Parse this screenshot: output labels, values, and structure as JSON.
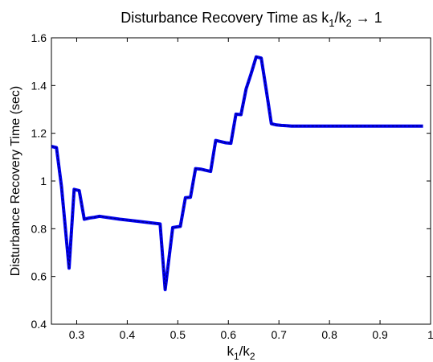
{
  "chart_data": {
    "type": "line",
    "title_main": "Disturbance Recovery Time as k",
    "title_sub1": "1",
    "title_mid": "/k",
    "title_sub2": "2",
    "title_end": " → 1",
    "xlabel_main": "k",
    "xlabel_sub1": "1",
    "xlabel_mid": "/k",
    "xlabel_sub2": "2",
    "ylabel": "Disturbance Recovery Time (sec)",
    "xlim": [
      0.25,
      1.0
    ],
    "ylim": [
      0.4,
      1.6
    ],
    "xticks": [
      0.3,
      0.4,
      0.5,
      0.6,
      0.7,
      0.8,
      0.9,
      1
    ],
    "xtick_labels": [
      "0.3",
      "0.4",
      "0.5",
      "0.6",
      "0.7",
      "0.8",
      "0.9",
      "1"
    ],
    "yticks": [
      0.4,
      0.6,
      0.8,
      1.0,
      1.2,
      1.4,
      1.6
    ],
    "ytick_labels": [
      "0.4",
      "0.6",
      "0.8",
      "1",
      "1.2",
      "1.4",
      "1.6"
    ],
    "grid": false,
    "series_color": "#0000ee",
    "series_dash_color": "#000000",
    "series": [
      {
        "x": [
          0.25,
          0.26,
          0.27,
          0.285,
          0.295,
          0.305,
          0.315,
          0.325,
          0.335,
          0.345,
          0.385,
          0.425,
          0.465,
          0.475,
          0.49,
          0.505,
          0.515,
          0.525,
          0.535,
          0.545,
          0.555,
          0.565,
          0.575,
          0.585,
          0.595,
          0.605,
          0.615,
          0.625,
          0.635,
          0.645,
          0.655,
          0.665,
          0.675,
          0.685,
          0.695,
          0.705,
          0.715,
          0.725,
          0.8,
          0.9,
          0.985
        ],
        "y": [
          1.145,
          1.14,
          0.975,
          0.635,
          0.965,
          0.96,
          0.84,
          0.845,
          0.848,
          0.852,
          0.84,
          0.83,
          0.82,
          0.545,
          0.805,
          0.81,
          0.93,
          0.932,
          1.052,
          1.05,
          1.045,
          1.04,
          1.17,
          1.165,
          1.16,
          1.158,
          1.28,
          1.278,
          1.385,
          1.45,
          1.52,
          1.515,
          1.38,
          1.24,
          1.235,
          1.233,
          1.232,
          1.23,
          1.23,
          1.23,
          1.23
        ]
      }
    ]
  }
}
